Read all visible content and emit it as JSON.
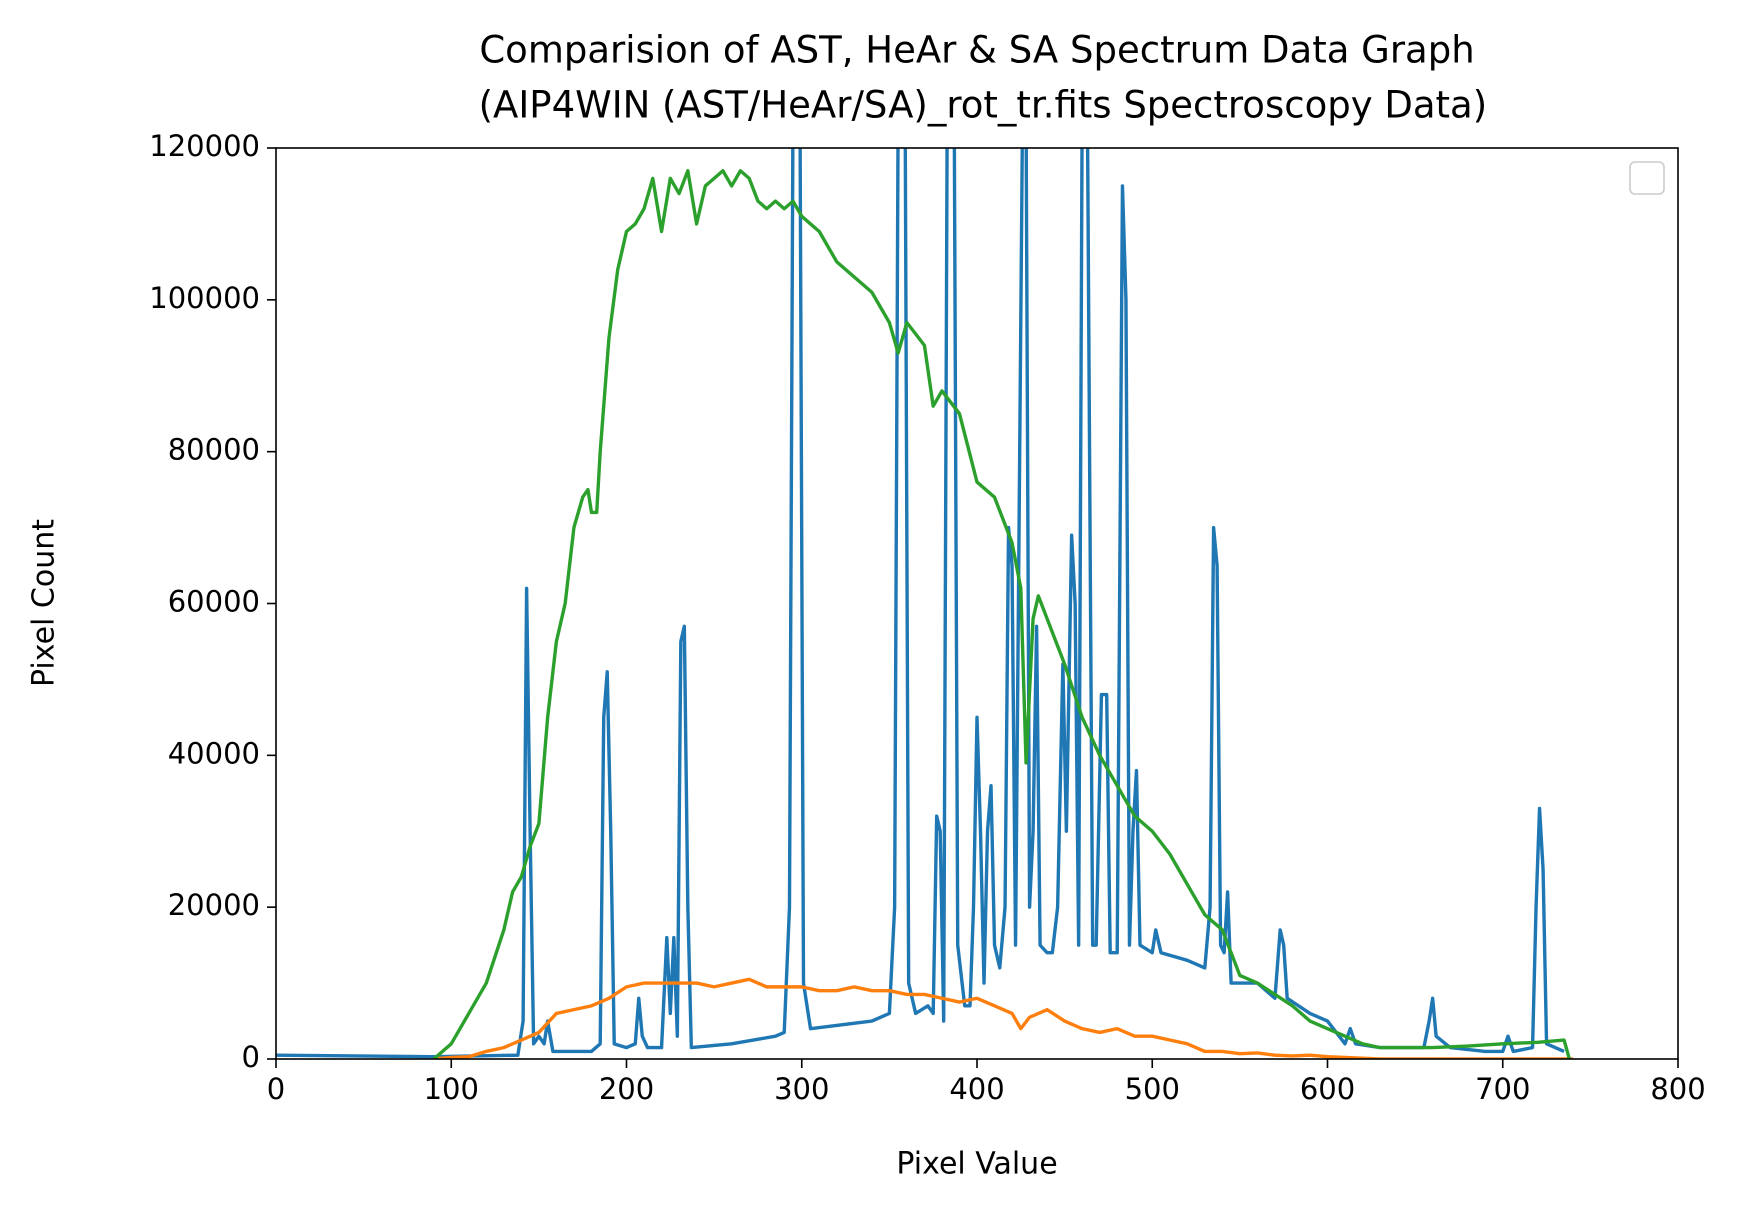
{
  "chart_data": {
    "type": "line",
    "title": [
      "Comparision of AST, HeAr & SA Spectrum Data Graph",
      " (AIP4WIN (AST/HeAr/SA)_rot_tr.fits Spectroscopy Data)"
    ],
    "xlabel": "Pixel Value",
    "ylabel": "Pixel Count",
    "xlim": [
      0,
      800
    ],
    "ylim": [
      0,
      120000
    ],
    "xticks": [
      0,
      100,
      200,
      300,
      400,
      500,
      600,
      700,
      800
    ],
    "yticks": [
      0,
      20000,
      40000,
      60000,
      80000,
      100000,
      120000
    ],
    "grid": false,
    "legend": "upper right",
    "series": [
      {
        "color": "#1f77b4",
        "x": [
          0,
          90,
          138,
          141,
          143,
          145,
          147,
          150,
          153,
          155,
          158,
          180,
          185,
          187,
          189,
          191,
          193,
          200,
          205,
          207,
          209,
          212,
          220,
          223,
          225,
          227,
          229,
          231,
          233,
          235,
          237,
          260,
          285,
          290,
          293,
          295,
          299,
          301,
          305,
          340,
          350,
          353,
          355,
          359,
          361,
          365,
          372,
          375,
          377,
          379,
          381,
          383,
          387,
          389,
          393,
          396,
          398,
          400,
          402,
          404,
          406,
          408,
          410,
          413,
          416,
          418,
          420,
          422,
          424,
          426,
          428,
          430,
          432,
          434,
          436,
          440,
          443,
          446,
          449,
          451,
          454,
          456,
          458,
          460,
          463,
          466,
          468,
          471,
          474,
          476,
          480,
          483,
          485,
          487,
          489,
          491,
          493,
          500,
          502,
          505,
          520,
          530,
          533,
          535,
          537,
          539,
          541,
          543,
          545,
          560,
          570,
          573,
          575,
          577,
          590,
          600,
          610,
          613,
          616,
          630,
          655,
          658,
          660,
          662,
          670,
          690,
          700,
          703,
          706,
          717,
          719,
          721,
          723,
          725,
          735
        ],
        "values": [
          500,
          300,
          500,
          5000,
          62000,
          30000,
          2000,
          3000,
          2000,
          5000,
          1000,
          1000,
          2000,
          45000,
          51000,
          30000,
          2000,
          1500,
          2000,
          8000,
          3000,
          1500,
          1500,
          16000,
          6000,
          16000,
          3000,
          55000,
          57000,
          20000,
          1500,
          2000,
          3000,
          3500,
          20000,
          125000,
          125000,
          10000,
          4000,
          5000,
          6000,
          20000,
          125000,
          125000,
          10000,
          6000,
          7000,
          6000,
          32000,
          30000,
          5000,
          125000,
          125000,
          15000,
          7000,
          7000,
          20000,
          45000,
          30000,
          10000,
          30000,
          36000,
          15000,
          12000,
          20000,
          70000,
          65000,
          15000,
          70000,
          125000,
          125000,
          20000,
          30000,
          57000,
          15000,
          14000,
          14000,
          20000,
          52000,
          30000,
          69000,
          60000,
          15000,
          125000,
          125000,
          15000,
          15000,
          48000,
          48000,
          14000,
          14000,
          115000,
          100000,
          15000,
          30000,
          38000,
          15000,
          14000,
          17000,
          14000,
          13000,
          12000,
          20000,
          70000,
          65000,
          15000,
          14000,
          22000,
          10000,
          10000,
          8000,
          17000,
          15000,
          8000,
          6000,
          5000,
          2000,
          4000,
          2000,
          1500,
          1500,
          5000,
          8000,
          3000,
          1500,
          1000,
          1000,
          3000,
          1000,
          1500,
          20000,
          33000,
          25000,
          2000,
          1000
        ]
      },
      {
        "color": "#ff7f0e",
        "x": [
          90,
          100,
          110,
          120,
          130,
          140,
          150,
          160,
          170,
          180,
          190,
          200,
          210,
          220,
          230,
          240,
          250,
          260,
          270,
          280,
          290,
          300,
          310,
          320,
          330,
          340,
          350,
          360,
          370,
          380,
          390,
          400,
          410,
          420,
          425,
          430,
          440,
          450,
          460,
          470,
          480,
          490,
          500,
          510,
          520,
          530,
          540,
          550,
          560,
          570,
          580,
          590,
          600,
          610,
          620,
          630,
          740
        ],
        "values": [
          0,
          200,
          300,
          1000,
          1500,
          2500,
          3500,
          6000,
          6500,
          7000,
          8000,
          9500,
          10000,
          10000,
          10000,
          10000,
          9500,
          10000,
          10500,
          9500,
          9500,
          9500,
          9000,
          9000,
          9500,
          9000,
          9000,
          8500,
          8500,
          8000,
          7500,
          8000,
          7000,
          6000,
          4000,
          5500,
          6500,
          5000,
          4000,
          3500,
          4000,
          3000,
          3000,
          2500,
          2000,
          1000,
          1000,
          700,
          800,
          500,
          400,
          500,
          300,
          200,
          100,
          0,
          0
        ]
      },
      {
        "color": "#2ca02c",
        "x": [
          90,
          100,
          110,
          120,
          130,
          135,
          140,
          145,
          150,
          155,
          160,
          165,
          170,
          175,
          178,
          180,
          183,
          185,
          190,
          195,
          200,
          205,
          210,
          215,
          220,
          225,
          230,
          235,
          240,
          245,
          250,
          255,
          260,
          265,
          270,
          275,
          280,
          285,
          290,
          295,
          300,
          305,
          310,
          320,
          330,
          340,
          350,
          355,
          360,
          370,
          375,
          380,
          390,
          400,
          410,
          420,
          425,
          428,
          432,
          435,
          440,
          450,
          460,
          470,
          480,
          490,
          500,
          510,
          520,
          530,
          540,
          550,
          560,
          570,
          580,
          590,
          600,
          610,
          620,
          630,
          640,
          660,
          680,
          700,
          720,
          735,
          738
        ],
        "values": [
          0,
          2000,
          6000,
          10000,
          17000,
          22000,
          24000,
          28000,
          31000,
          45000,
          55000,
          60000,
          70000,
          74000,
          75000,
          72000,
          72000,
          80000,
          95000,
          104000,
          109000,
          110000,
          112000,
          116000,
          109000,
          116000,
          114000,
          117000,
          110000,
          115000,
          116000,
          117000,
          115000,
          117000,
          116000,
          113000,
          112000,
          113000,
          112000,
          113000,
          111000,
          110000,
          109000,
          105000,
          103000,
          101000,
          97000,
          93000,
          97000,
          94000,
          86000,
          88000,
          85000,
          76000,
          74000,
          68000,
          62000,
          39000,
          58000,
          61000,
          58000,
          52000,
          45000,
          40000,
          36000,
          32000,
          30000,
          27000,
          23000,
          19000,
          17000,
          11000,
          10000,
          8500,
          7000,
          5000,
          4000,
          3000,
          2000,
          1500,
          1500,
          1500,
          1700,
          2000,
          2200,
          2500,
          0
        ]
      }
    ]
  }
}
